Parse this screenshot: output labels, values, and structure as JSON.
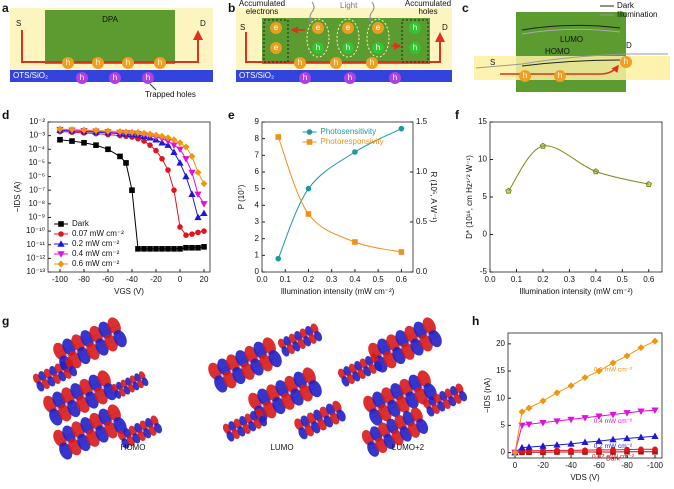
{
  "panel_labels": [
    "a",
    "b",
    "c",
    "d",
    "e",
    "f",
    "g",
    "h"
  ],
  "diagram_a": {
    "source": "S",
    "drain": "D",
    "semiconductor": "DPA",
    "hole": "h",
    "dielectric": "OTS/SiO₂",
    "trapped": "Trapped holes"
  },
  "diagram_b": {
    "source": "S",
    "drain": "D",
    "electron": "e",
    "hole": "h",
    "dielectric": "OTS/SiO₂",
    "light": "Light",
    "accumulated_electrons": [
      "Accumulated",
      "electrons"
    ],
    "accumulated_holes": [
      "Accumulated",
      "holes"
    ]
  },
  "diagram_c": {
    "legend": [
      "Dark",
      "Illumination"
    ],
    "lumo": "LUMO",
    "homo": "HOMO",
    "source": "S",
    "drain": "D",
    "hole": "h"
  },
  "diagram_g": {
    "labels": [
      "HOMO",
      "LUMO",
      "LUMO+2"
    ]
  },
  "chart_data": [
    {
      "type": "line",
      "xlabel": "VGS (V)",
      "ylabel": "−IDS (A)",
      "ylog": true,
      "legend": "lower left",
      "xlim": [
        -110,
        25
      ],
      "xticks": [
        -100,
        -80,
        -60,
        -40,
        -20,
        0,
        20
      ],
      "ylim": [
        1e-13,
        0.01
      ],
      "yticks": [
        {
          "value": 0.01,
          "label": "10⁻²"
        },
        {
          "value": 0.001,
          "label": "10⁻³"
        },
        {
          "value": 0.0001,
          "label": "10⁻⁴"
        },
        {
          "value": 1e-05,
          "label": "10⁻⁵"
        },
        {
          "value": 1e-06,
          "label": "10⁻⁶"
        },
        {
          "value": 1e-07,
          "label": "10⁻⁷"
        },
        {
          "value": 1e-08,
          "label": "10⁻⁸"
        },
        {
          "value": 1e-09,
          "label": "10⁻⁹"
        },
        {
          "value": 1e-10,
          "label": "10⁻¹⁰"
        },
        {
          "value": 1e-11,
          "label": "10⁻¹¹"
        },
        {
          "value": 1e-12,
          "label": "10⁻¹²"
        },
        {
          "value": 1e-13,
          "label": "10⁻¹³"
        }
      ],
      "x": [
        -100,
        -90,
        -80,
        -70,
        -60,
        -50,
        -45,
        -40,
        -35,
        -30,
        -25,
        -20,
        -15,
        -10,
        -5,
        0,
        5,
        10,
        15,
        20
      ],
      "series": [
        {
          "name": "Dark",
          "color": "#000000",
          "marker": "square",
          "values": [
            0.0005,
            0.0004,
            0.0003,
            0.0002,
            0.0001,
            3e-05,
            1e-05,
            1e-07,
            5e-12,
            5e-12,
            5e-12,
            5e-12,
            5e-12,
            5e-12,
            5e-12,
            5e-12,
            6e-12,
            6e-12,
            6e-12,
            7e-12
          ]
        },
        {
          "name": "0.07 mW cm⁻²",
          "color": "#e0141e",
          "marker": "circle",
          "values": [
            0.002,
            0.0018,
            0.0016,
            0.0014,
            0.0012,
            0.001,
            0.0009,
            0.0008,
            0.0006,
            0.0004,
            0.0002,
            8e-05,
            2e-05,
            3e-06,
            1e-07,
            2e-10,
            5e-11,
            6e-11,
            8e-11,
            1e-10
          ]
        },
        {
          "name": "0.2 mW cm⁻²",
          "color": "#1a1ad6",
          "marker": "triangle-up",
          "values": [
            0.0025,
            0.0022,
            0.002,
            0.0018,
            0.0016,
            0.0014,
            0.0013,
            0.0012,
            0.0011,
            0.0009,
            0.0007,
            0.0005,
            0.0003,
            0.0002,
            6e-05,
            1e-05,
            1e-06,
            5e-08,
            1e-09,
            2e-09
          ]
        },
        {
          "name": "0.4 mW cm⁻²",
          "color": "#e010e0",
          "marker": "triangle-down",
          "values": [
            0.0028,
            0.0025,
            0.0023,
            0.0021,
            0.0019,
            0.0017,
            0.0016,
            0.0015,
            0.0014,
            0.0012,
            0.001,
            0.0008,
            0.0006,
            0.0004,
            0.0002,
            0.0001,
            2e-05,
            2e-06,
            5e-08,
            1e-08
          ]
        },
        {
          "name": "0.6 mW cm⁻²",
          "color": "#f0960a",
          "marker": "diamond",
          "values": [
            0.003,
            0.0028,
            0.0026,
            0.0024,
            0.0022,
            0.002,
            0.0019,
            0.0018,
            0.0017,
            0.0015,
            0.0013,
            0.0011,
            0.0009,
            0.0007,
            0.0005,
            0.0003,
            0.00015,
            3e-05,
            2e-06,
            3e-07
          ]
        }
      ]
    },
    {
      "type": "line",
      "curve": "smooth",
      "xlabel": "Illumination intensity (mW cm⁻²)",
      "ylabel": "P (10⁷)",
      "y2label": "R (10⁵, A W⁻¹)",
      "legend": "upper center",
      "xlim": [
        0,
        0.65
      ],
      "xticks": [
        {
          "value": 0,
          "label": "0.0"
        },
        0.1,
        0.2,
        0.3,
        0.4,
        0.5,
        0.6
      ],
      "ylim": [
        0,
        9
      ],
      "yticks": [
        0,
        1,
        2,
        3,
        4,
        5,
        6,
        7,
        8,
        9
      ],
      "y2lim": [
        0,
        1.5
      ],
      "y2ticks": [
        {
          "value": 0,
          "label": "0.0"
        },
        0.5,
        {
          "value": 1,
          "label": "1.0"
        },
        1.5
      ],
      "x": [
        0.07,
        0.2,
        0.4,
        0.6
      ],
      "series": [
        {
          "name": "Photosensitivity",
          "color": "#1a9a9a",
          "marker": "circle",
          "values": [
            0.8,
            5.0,
            7.2,
            8.6
          ]
        },
        {
          "name": "Photoresponsivity",
          "color": "#f0901a",
          "marker": "square",
          "axis": "y2",
          "values": [
            1.35,
            0.58,
            0.3,
            0.2
          ]
        }
      ]
    },
    {
      "type": "line",
      "curve": "smooth",
      "xlabel": "Illumination intensity (mW cm⁻²)",
      "ylabel": "D* (10¹⁶, cm Hz¹ᐟ² W⁻¹)",
      "xlim": [
        0,
        0.65
      ],
      "xticks": [
        {
          "value": 0,
          "label": "0.0"
        },
        0.1,
        0.2,
        0.3,
        0.4,
        0.5,
        0.6
      ],
      "ylim": [
        -5,
        15
      ],
      "yticks": [
        -5,
        0,
        5,
        10,
        15
      ],
      "x": [
        0.07,
        0.2,
        0.4,
        0.6
      ],
      "series": [
        {
          "color": "#7a8c14",
          "marker": "pentagon",
          "values": [
            5.8,
            11.8,
            8.4,
            6.7
          ]
        }
      ]
    },
    {
      "type": "line",
      "xlabel": "VDS (V)",
      "ylabel": "−IDS (nA)",
      "legend": "inline",
      "xlim": [
        5,
        -105
      ],
      "xticks": [
        0,
        -20,
        -40,
        -60,
        -80,
        -100
      ],
      "ylim": [
        -1,
        22
      ],
      "yticks": [
        0,
        5,
        10,
        15,
        20
      ],
      "x": [
        0,
        -5,
        -10,
        -20,
        -30,
        -40,
        -50,
        -60,
        -70,
        -80,
        -90,
        -100
      ],
      "series": [
        {
          "name": "Dark",
          "color": "#b01010",
          "marker": "square",
          "values": [
            0,
            0.05,
            0.05,
            0.05,
            0.1,
            0.1,
            0.1,
            0.1,
            0.1,
            0.15,
            0.15,
            0.15
          ]
        },
        {
          "name": "0.07 mW cm⁻²",
          "color": "#e0141e",
          "marker": "circle",
          "values": [
            0,
            0.3,
            0.3,
            0.35,
            0.4,
            0.4,
            0.45,
            0.5,
            0.5,
            0.55,
            0.6,
            0.6
          ]
        },
        {
          "name": "0.2 mW cm⁻²",
          "color": "#1a1ad6",
          "marker": "triangle-up",
          "values": [
            0,
            0.9,
            1.0,
            1.2,
            1.4,
            1.6,
            1.9,
            2.1,
            2.4,
            2.6,
            2.8,
            3.0
          ]
        },
        {
          "name": "0.4 mW cm⁻²",
          "color": "#e010e0",
          "marker": "triangle-down",
          "values": [
            0,
            5.0,
            5.2,
            5.5,
            5.8,
            6.1,
            6.4,
            6.7,
            7.0,
            7.3,
            7.6,
            7.8
          ]
        },
        {
          "name": "0.6 mW cm⁻²",
          "color": "#f0960a",
          "marker": "diamond",
          "values": [
            0,
            7.5,
            8.2,
            9.5,
            11.0,
            12.3,
            13.8,
            15.0,
            16.5,
            17.8,
            19.3,
            20.5
          ]
        }
      ]
    }
  ]
}
